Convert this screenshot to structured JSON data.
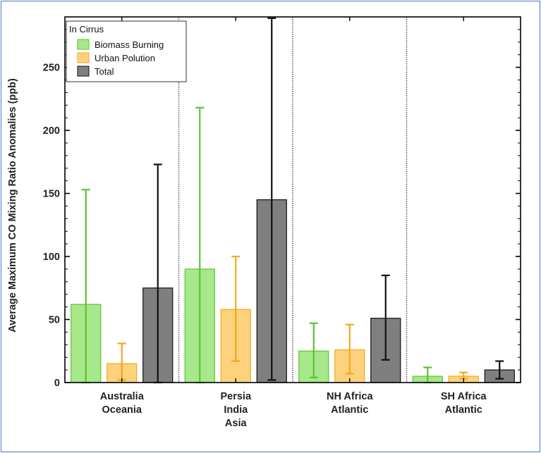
{
  "chart_data": {
    "type": "bar",
    "title": "",
    "xlabel": "",
    "ylabel": "Average Maximum CO Mixing Ratio Anomalies (ppb)",
    "ylim": [
      0,
      290
    ],
    "yticks": [
      0,
      50,
      100,
      150,
      200,
      250
    ],
    "grid": false,
    "legend": {
      "title": "In Cirrus",
      "placement": "top-left"
    },
    "categories": [
      {
        "lines": [
          "Australia",
          "Oceania"
        ]
      },
      {
        "lines": [
          "Persia",
          "India",
          "Asia"
        ]
      },
      {
        "lines": [
          "NH Africa",
          "Atlantic"
        ]
      },
      {
        "lines": [
          "SH Africa",
          "Atlantic"
        ]
      }
    ],
    "series": [
      {
        "name": "Biomass Burning",
        "fill": "#a6e88a",
        "stroke": "#5fc233",
        "values": [
          62,
          90,
          25,
          5
        ],
        "error_upper": [
          153,
          218,
          47,
          12
        ],
        "error_lower": [
          0,
          0,
          4,
          0
        ]
      },
      {
        "name": "Urban Polution",
        "fill": "#fcd27c",
        "stroke": "#f2a81c",
        "values": [
          15,
          58,
          26,
          5
        ],
        "error_upper": [
          31,
          100,
          46,
          8
        ],
        "error_lower": [
          2,
          17,
          7,
          3
        ]
      },
      {
        "name": "Total",
        "fill": "#7f7f7f",
        "stroke": "#111111",
        "values": [
          75,
          145,
          51,
          10
        ],
        "error_upper": [
          173,
          289,
          85,
          17
        ],
        "error_lower": [
          0,
          2,
          18,
          3
        ]
      }
    ]
  }
}
